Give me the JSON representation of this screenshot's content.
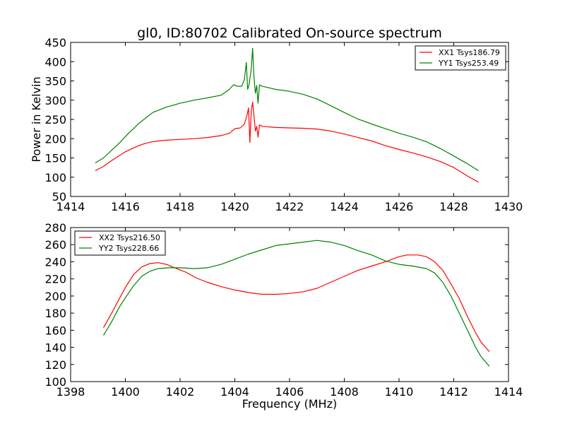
{
  "chart_data": [
    {
      "type": "line",
      "title": "gl0, ID:80702 Calibrated On-source spectrum",
      "xlabel": "",
      "ylabel": "Power in Kelvin",
      "xlim": [
        1414,
        1430
      ],
      "ylim": [
        50,
        450
      ],
      "xticks": [
        1414,
        1416,
        1418,
        1420,
        1422,
        1424,
        1426,
        1428,
        1430
      ],
      "yticks": [
        50,
        100,
        150,
        200,
        250,
        300,
        350,
        400,
        450
      ],
      "legend": "top-right",
      "series": [
        {
          "name": "XX1 Tsys186.79",
          "color": "#ff0000",
          "points": [
            [
              1414.9,
              117
            ],
            [
              1415.2,
              128
            ],
            [
              1415.5,
              143
            ],
            [
              1415.8,
              157
            ],
            [
              1416.0,
              166
            ],
            [
              1416.3,
              176
            ],
            [
              1416.6,
              185
            ],
            [
              1416.9,
              191
            ],
            [
              1417.2,
              194
            ],
            [
              1417.5,
              196
            ],
            [
              1418.0,
              198
            ],
            [
              1418.5,
              200
            ],
            [
              1419.0,
              203
            ],
            [
              1419.5,
              208
            ],
            [
              1419.8,
              214
            ],
            [
              1420.0,
              226
            ],
            [
              1420.2,
              228
            ],
            [
              1420.35,
              238
            ],
            [
              1420.45,
              262
            ],
            [
              1420.5,
              280
            ],
            [
              1420.55,
              190
            ],
            [
              1420.6,
              270
            ],
            [
              1420.65,
              295
            ],
            [
              1420.7,
              260
            ],
            [
              1420.75,
              220
            ],
            [
              1420.8,
              232
            ],
            [
              1420.85,
              204
            ],
            [
              1420.9,
              236
            ],
            [
              1421.0,
              232
            ],
            [
              1421.5,
              229
            ],
            [
              1422.0,
              228
            ],
            [
              1422.5,
              227
            ],
            [
              1423.0,
              225
            ],
            [
              1423.5,
              220
            ],
            [
              1424.0,
              212
            ],
            [
              1424.5,
              203
            ],
            [
              1425.0,
              194
            ],
            [
              1425.5,
              182
            ],
            [
              1426.0,
              172
            ],
            [
              1426.5,
              163
            ],
            [
              1427.0,
              153
            ],
            [
              1427.5,
              141
            ],
            [
              1428.0,
              125
            ],
            [
              1428.5,
              103
            ],
            [
              1428.9,
              87
            ]
          ]
        },
        {
          "name": "YY1 Tsys253.49",
          "color": "#008000",
          "points": [
            [
              1414.9,
              137
            ],
            [
              1415.2,
              150
            ],
            [
              1415.5,
              170
            ],
            [
              1415.8,
              190
            ],
            [
              1416.1,
              213
            ],
            [
              1416.5,
              240
            ],
            [
              1417.0,
              268
            ],
            [
              1417.5,
              282
            ],
            [
              1418.0,
              292
            ],
            [
              1418.5,
              300
            ],
            [
              1419.0,
              306
            ],
            [
              1419.5,
              313
            ],
            [
              1419.8,
              328
            ],
            [
              1419.95,
              340
            ],
            [
              1420.1,
              336
            ],
            [
              1420.25,
              336
            ],
            [
              1420.35,
              354
            ],
            [
              1420.42,
              398
            ],
            [
              1420.47,
              328
            ],
            [
              1420.52,
              340
            ],
            [
              1420.6,
              380
            ],
            [
              1420.65,
              435
            ],
            [
              1420.7,
              360
            ],
            [
              1420.75,
              318
            ],
            [
              1420.8,
              338
            ],
            [
              1420.85,
              292
            ],
            [
              1420.9,
              340
            ],
            [
              1421.0,
              336
            ],
            [
              1421.5,
              328
            ],
            [
              1422.0,
              323
            ],
            [
              1422.5,
              315
            ],
            [
              1423.0,
              303
            ],
            [
              1423.5,
              286
            ],
            [
              1424.0,
              268
            ],
            [
              1424.5,
              251
            ],
            [
              1425.0,
              238
            ],
            [
              1425.5,
              226
            ],
            [
              1426.0,
              214
            ],
            [
              1426.5,
              204
            ],
            [
              1427.0,
              192
            ],
            [
              1427.5,
              175
            ],
            [
              1428.0,
              155
            ],
            [
              1428.5,
              135
            ],
            [
              1428.9,
              117
            ]
          ]
        }
      ]
    },
    {
      "type": "line",
      "title": "",
      "xlabel": "Frequency (MHz)",
      "ylabel": "",
      "xlim": [
        1398,
        1414
      ],
      "ylim": [
        100,
        280
      ],
      "xticks": [
        1398,
        1400,
        1402,
        1404,
        1406,
        1408,
        1410,
        1412,
        1414
      ],
      "yticks": [
        100,
        120,
        140,
        160,
        180,
        200,
        220,
        240,
        260,
        280
      ],
      "legend": "top-left",
      "series": [
        {
          "name": "XX2 Tsys216.50",
          "color": "#ff0000",
          "points": [
            [
              1399.2,
              163
            ],
            [
              1399.5,
              180
            ],
            [
              1399.8,
              198
            ],
            [
              1400.0,
              210
            ],
            [
              1400.3,
              225
            ],
            [
              1400.6,
              234
            ],
            [
              1400.9,
              238
            ],
            [
              1401.2,
              239
            ],
            [
              1401.5,
              237
            ],
            [
              1401.8,
              233
            ],
            [
              1402.2,
              228
            ],
            [
              1402.6,
              221
            ],
            [
              1403.0,
              216
            ],
            [
              1403.5,
              211
            ],
            [
              1404.0,
              207
            ],
            [
              1404.5,
              204
            ],
            [
              1405.0,
              202
            ],
            [
              1405.5,
              202
            ],
            [
              1406.0,
              203
            ],
            [
              1406.5,
              205
            ],
            [
              1407.0,
              209
            ],
            [
              1407.5,
              216
            ],
            [
              1408.0,
              223
            ],
            [
              1408.5,
              230
            ],
            [
              1409.0,
              235
            ],
            [
              1409.5,
              240
            ],
            [
              1410.0,
              246
            ],
            [
              1410.3,
              248
            ],
            [
              1410.7,
              248
            ],
            [
              1411.0,
              246
            ],
            [
              1411.3,
              240
            ],
            [
              1411.6,
              230
            ],
            [
              1411.9,
              214
            ],
            [
              1412.2,
              197
            ],
            [
              1412.5,
              176
            ],
            [
              1412.8,
              157
            ],
            [
              1413.0,
              146
            ],
            [
              1413.3,
              135
            ]
          ]
        },
        {
          "name": "YY2 Tsys228.66",
          "color": "#008000",
          "points": [
            [
              1399.2,
              154
            ],
            [
              1399.5,
              170
            ],
            [
              1399.8,
              188
            ],
            [
              1400.0,
              198
            ],
            [
              1400.3,
              212
            ],
            [
              1400.6,
              223
            ],
            [
              1400.9,
              229
            ],
            [
              1401.2,
              232
            ],
            [
              1401.6,
              233
            ],
            [
              1402.0,
              233
            ],
            [
              1402.5,
              232
            ],
            [
              1403.0,
              233
            ],
            [
              1403.5,
              237
            ],
            [
              1404.0,
              243
            ],
            [
              1404.5,
              249
            ],
            [
              1405.0,
              254
            ],
            [
              1405.5,
              259
            ],
            [
              1406.0,
              261
            ],
            [
              1406.5,
              263
            ],
            [
              1407.0,
              265
            ],
            [
              1407.5,
              263
            ],
            [
              1408.0,
              259
            ],
            [
              1408.5,
              253
            ],
            [
              1409.0,
              248
            ],
            [
              1409.5,
              241
            ],
            [
              1410.0,
              237
            ],
            [
              1410.5,
              235
            ],
            [
              1411.0,
              232
            ],
            [
              1411.3,
              227
            ],
            [
              1411.6,
              216
            ],
            [
              1411.9,
              200
            ],
            [
              1412.2,
              180
            ],
            [
              1412.5,
              160
            ],
            [
              1412.8,
              140
            ],
            [
              1413.0,
              129
            ],
            [
              1413.3,
              118
            ]
          ]
        }
      ]
    }
  ]
}
